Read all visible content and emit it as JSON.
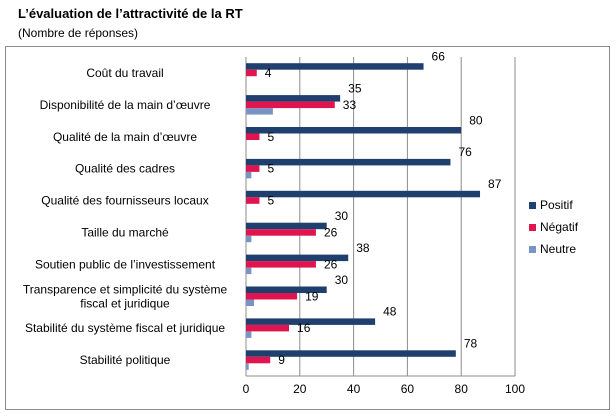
{
  "title": "L’évaluation de l’attractivité de la RT",
  "subtitle": "(Nombre de réponses)",
  "colors": {
    "Positif": "#1f3f6e",
    "Négatif": "#e0144e",
    "Neutre": "#7b93c2"
  },
  "chart_data": {
    "type": "bar",
    "orientation": "horizontal",
    "categories": [
      "Coût du travail",
      "Disponibilité de la main d’œuvre",
      "Qualité de la main d’œuvre",
      "Qualité des cadres",
      "Qualité des fournisseurs locaux",
      "Taille du marché",
      "Soutien public de l’investissement",
      "Transparence et simplicité du système fiscal et juridique",
      "Stabilité du système fiscal et juridique",
      "Stabilité politique"
    ],
    "series": [
      {
        "name": "Positif",
        "values": [
          66,
          35,
          80,
          76,
          87,
          30,
          38,
          30,
          48,
          78
        ]
      },
      {
        "name": "Négatif",
        "values": [
          4,
          33,
          5,
          5,
          5,
          26,
          26,
          19,
          16,
          9
        ]
      },
      {
        "name": "Neutre",
        "values": [
          0,
          10,
          0,
          2,
          0,
          2,
          2,
          3,
          2,
          1
        ]
      }
    ],
    "xlim": [
      0,
      100
    ],
    "xticks": [
      0,
      20,
      40,
      60,
      80,
      100
    ],
    "grid": true,
    "legend": "right",
    "labeled_series": [
      "Positif",
      "Négatif"
    ]
  }
}
